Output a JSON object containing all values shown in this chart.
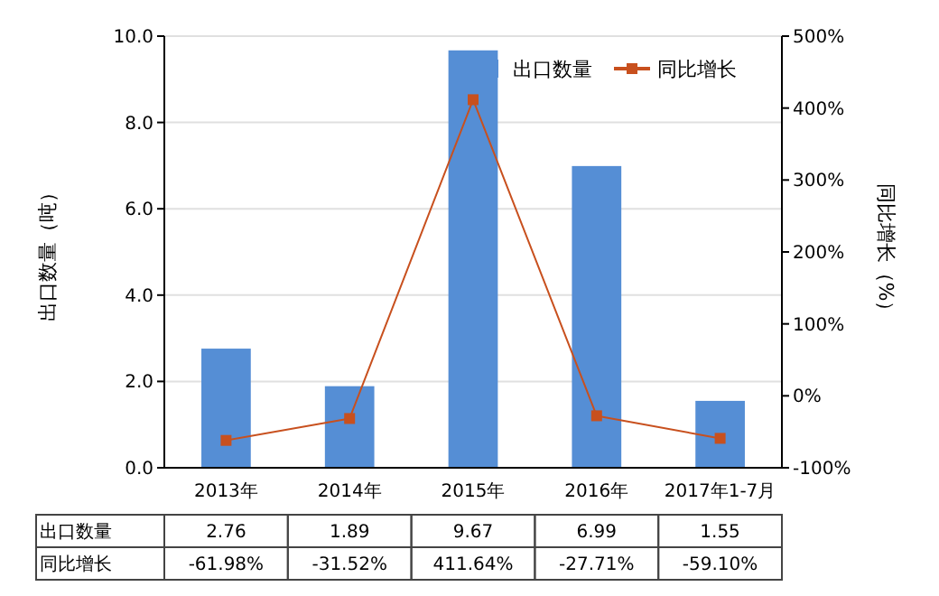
{
  "chart_data": {
    "type": "bar",
    "categories": [
      "2013年",
      "2014年",
      "2015年",
      "2016年",
      "2017年1-7月"
    ],
    "ylabel": "出口数量（吨）",
    "y2label": "同比增长（%）",
    "series": [
      {
        "name": "出口数量",
        "color": "#558ed5",
        "values": [
          2.76,
          1.89,
          9.67,
          6.99,
          1.55
        ],
        "value_labels": [
          "2.76",
          "1.89",
          "9.67",
          "6.99",
          "1.55"
        ]
      },
      {
        "name": "同比增长",
        "type": "line",
        "axis": "y2",
        "color": "#c8501e",
        "values": [
          -61.98,
          -31.52,
          411.64,
          -27.71,
          -59.1
        ],
        "value_labels": [
          "-61.98%",
          "-31.52%",
          "411.64%",
          "-27.71%",
          "-59.10%"
        ]
      }
    ],
    "ylim": [
      0,
      10
    ],
    "yticks": [
      {
        "value": 0,
        "label": "0.0"
      },
      {
        "value": 2,
        "label": "2.0"
      },
      {
        "value": 4,
        "label": "4.0"
      },
      {
        "value": 6,
        "label": "6.0"
      },
      {
        "value": 8,
        "label": "8.0"
      },
      {
        "value": 10,
        "label": "10.0"
      }
    ],
    "y2lim": [
      -100,
      500
    ],
    "y2ticks": [
      {
        "value": -100,
        "label": "-100%"
      },
      {
        "value": 0,
        "label": "0%"
      },
      {
        "value": 100,
        "label": "100%"
      },
      {
        "value": 200,
        "label": "200%"
      },
      {
        "value": 300,
        "label": "300%"
      },
      {
        "value": 400,
        "label": "400%"
      },
      {
        "value": 500,
        "label": "500%"
      }
    ],
    "grid": "y",
    "legend": "top right",
    "marker": "square",
    "line_style": "solid",
    "data_labels": true
  }
}
